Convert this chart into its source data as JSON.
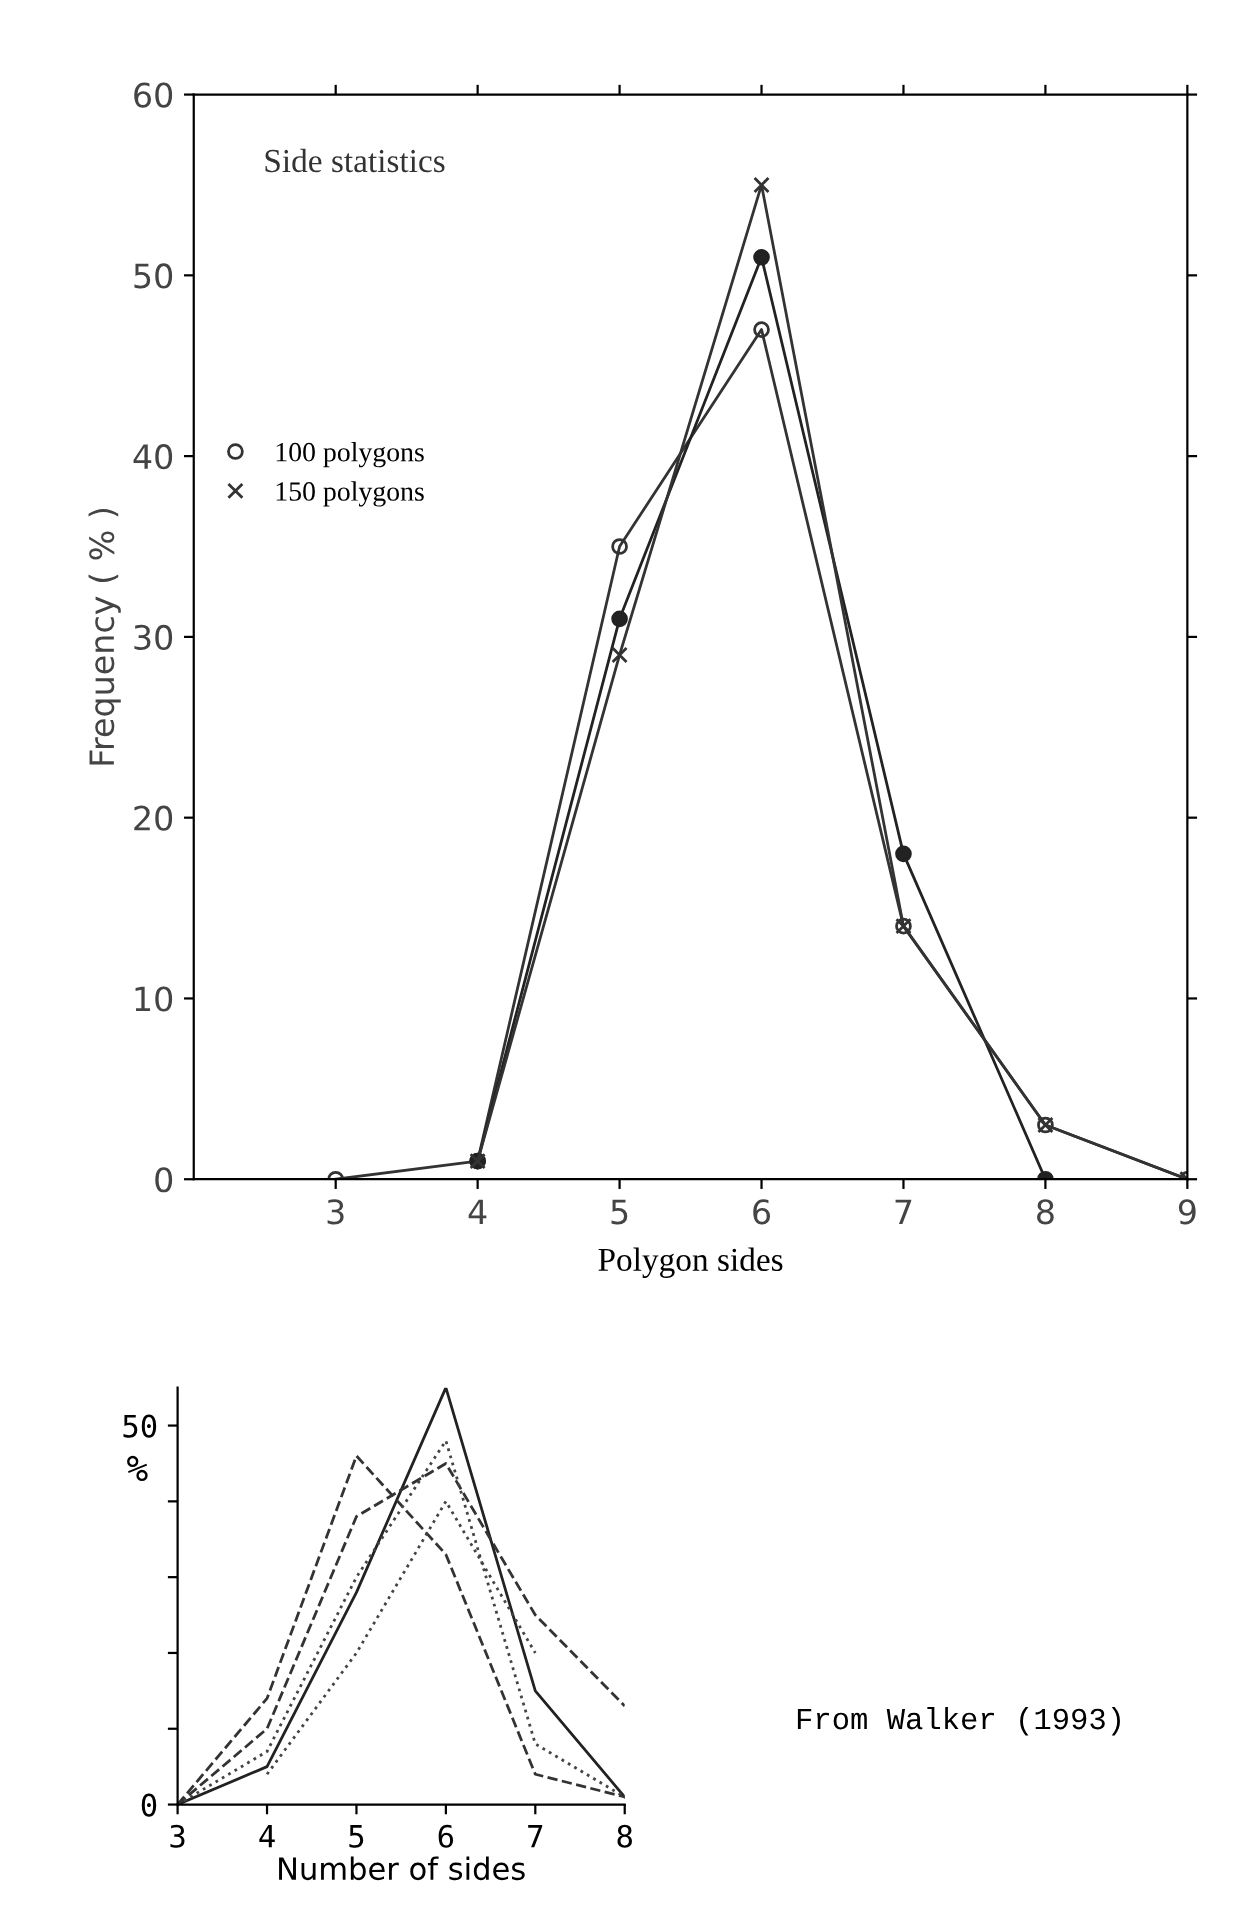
{
  "chart_data": [
    {
      "type": "line",
      "title": "Side statistics",
      "xlabel": "Polygon sides",
      "ylabel": "Frequency ( % )",
      "xlim": [
        2,
        9
      ],
      "xticks": [
        3,
        4,
        5,
        6,
        7,
        8,
        9
      ],
      "ylim": [
        0,
        60
      ],
      "yticks": [
        0,
        10,
        20,
        30,
        40,
        50,
        60
      ],
      "grid": false,
      "legend": "left",
      "line_style": "solid",
      "series": [
        {
          "name": "100 polygons",
          "color": "#333333",
          "marker": "circle",
          "x": [
            3,
            4,
            5,
            6,
            7,
            8,
            9
          ],
          "values": [
            0,
            1,
            35,
            47,
            14,
            3,
            0
          ]
        },
        {
          "color": "#222222",
          "marker": "filled_circle",
          "x": [
            4,
            5,
            6,
            7,
            8
          ],
          "values": [
            1,
            31,
            51,
            18,
            0
          ]
        },
        {
          "name": "150 polygons",
          "color": "#333333",
          "marker": "cross",
          "x": [
            4,
            5,
            6,
            7,
            8,
            9
          ],
          "values": [
            1,
            29,
            55,
            14,
            3,
            0
          ]
        }
      ]
    },
    {
      "type": "line",
      "xlabel": "Number of sides",
      "ylabel": "%",
      "annotations": [
        "From Walker (1993)"
      ],
      "xlim": [
        3,
        8
      ],
      "xticks": [
        3,
        4,
        5,
        6,
        7,
        8
      ],
      "ylim": [
        0,
        55
      ],
      "yticks": [
        0,
        {
          "value": 10,
          "label": null
        },
        {
          "value": 20,
          "label": null
        },
        {
          "value": 30,
          "label": null
        },
        {
          "value": 40,
          "label": null
        },
        50
      ],
      "grid": false,
      "marker": "none",
      "series": [
        {
          "color": "#222222",
          "line_style": "solid",
          "x": [
            3,
            4,
            5,
            6,
            7,
            8
          ],
          "values": [
            0,
            5,
            28,
            55,
            15,
            1
          ]
        },
        {
          "color": "#333333",
          "line_style": "dashed",
          "x": [
            3,
            4,
            5,
            6,
            7,
            8
          ],
          "values": [
            0,
            14,
            46,
            33,
            4,
            1
          ]
        },
        {
          "color": "#333333",
          "line_style": "dashed",
          "x": [
            3,
            4,
            5,
            6,
            7,
            8
          ],
          "values": [
            0,
            10,
            38,
            45,
            25,
            13
          ]
        },
        {
          "color": "#444444",
          "line_style": "dotted",
          "x": [
            3,
            4,
            5,
            6,
            7,
            8
          ],
          "values": [
            0,
            7,
            30,
            48,
            8,
            1
          ]
        },
        {
          "color": "#444444",
          "line_style": "dotted",
          "x": [
            4,
            5,
            6,
            7
          ],
          "values": [
            4,
            20,
            40,
            20
          ]
        }
      ]
    }
  ]
}
